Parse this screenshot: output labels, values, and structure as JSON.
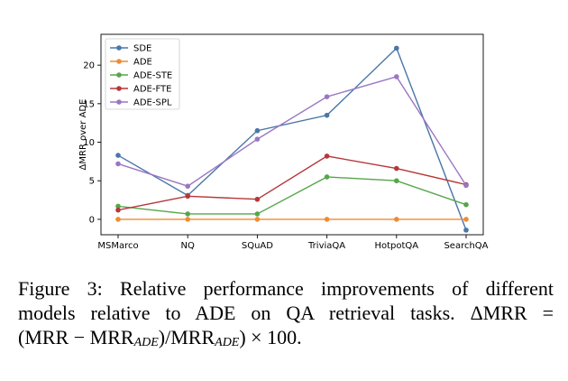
{
  "chart_data": {
    "type": "line",
    "title": "",
    "xlabel": "",
    "ylabel": "ΔMRR over ADE",
    "categories": [
      "MSMarco",
      "NQ",
      "SQuAD",
      "TriviaQA",
      "HotpotQA",
      "SearchQA"
    ],
    "ylim": [
      -2,
      24
    ],
    "yticks": [
      0,
      5,
      10,
      15,
      20
    ],
    "grid": false,
    "legend_position": "top-left",
    "series": [
      {
        "name": "SDE",
        "color": "#4a76a8",
        "values": [
          8.3,
          3.1,
          11.5,
          13.5,
          22.2,
          -1.4
        ]
      },
      {
        "name": "ADE",
        "color": "#ef8b33",
        "values": [
          0,
          0,
          0,
          0,
          0,
          0
        ]
      },
      {
        "name": "ADE-STE",
        "color": "#56a64a",
        "values": [
          1.7,
          0.7,
          0.7,
          5.5,
          5.0,
          1.9
        ]
      },
      {
        "name": "ADE-FTE",
        "color": "#b6373a",
        "values": [
          1.2,
          3.0,
          2.6,
          8.2,
          6.6,
          4.5
        ]
      },
      {
        "name": "ADE-SPL",
        "color": "#9a77c2",
        "values": [
          7.2,
          4.3,
          10.4,
          15.9,
          18.5,
          4.4
        ]
      }
    ]
  },
  "caption": {
    "line1": "Figure 3:  Relative performance improvements of different",
    "line2": "models relative to ADE on QA retrieval tasks.  ΔMRR =",
    "line3_open": "(MRR − MRR",
    "line3_sub1": "ADE",
    "line3_mid": ")/MRR",
    "line3_sub2": "ADE",
    "line3_close": ") × 100."
  }
}
